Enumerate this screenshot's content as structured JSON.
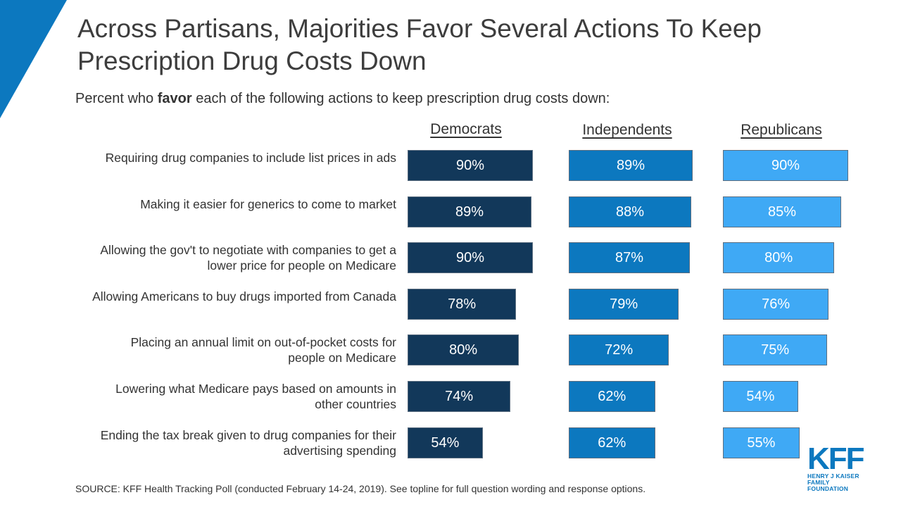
{
  "title": "Across Partisans, Majorities Favor Several Actions To Keep Prescription Drug Costs Down",
  "subtitle_pre": "Percent who ",
  "subtitle_bold": "favor",
  "subtitle_post": " each of the following actions to keep prescription drug costs down:",
  "source": "SOURCE: KFF Health Tracking Poll (conducted February 14-24, 2019). See topline for full question wording and response options.",
  "logo": {
    "text": "KFF",
    "line1": "HENRY J KAISER",
    "line2": "FAMILY FOUNDATION"
  },
  "colors": {
    "corner": "#0c78bf",
    "democrats": "#12385a",
    "independents": "#0c78bf",
    "republicans": "#3fa9f5"
  },
  "chart_data": {
    "type": "bar",
    "orientation": "horizontal",
    "categories": [
      "Requiring drug companies to include list prices in ads",
      "Making it easier for generics to come to market",
      "Allowing the gov't to negotiate with companies to get a lower price for people on Medicare",
      "Allowing Americans to buy drugs imported from Canada",
      "Placing an annual limit on out-of-pocket costs for people on Medicare",
      "Lowering what Medicare pays based on amounts in other countries",
      "Ending the tax break given to drug companies for their advertising spending"
    ],
    "series": [
      {
        "name": "Democrats",
        "values": [
          90,
          89,
          90,
          78,
          80,
          74,
          54
        ],
        "labels": [
          "90%",
          "89%",
          "90%",
          "78%",
          "80%",
          "74%",
          "54%"
        ]
      },
      {
        "name": "Independents",
        "values": [
          89,
          88,
          87,
          79,
          72,
          62,
          62
        ],
        "labels": [
          "89%",
          "88%",
          "87%",
          "79%",
          "72%",
          "62%",
          "62%"
        ]
      },
      {
        "name": "Republicans",
        "values": [
          90,
          85,
          80,
          76,
          75,
          54,
          55
        ],
        "labels": [
          "90%",
          "85%",
          "80%",
          "76%",
          "75%",
          "54%",
          "55%"
        ]
      }
    ],
    "unit": "%",
    "xlim": [
      0,
      100
    ]
  }
}
